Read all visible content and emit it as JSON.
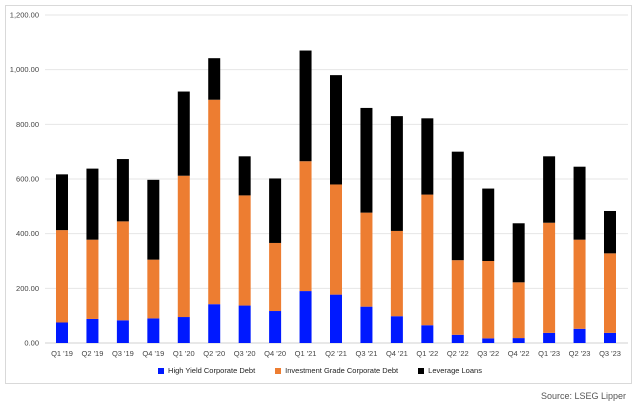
{
  "chart_data": {
    "type": "bar",
    "stacked": true,
    "title": "",
    "xlabel": "",
    "ylabel": "",
    "ylim": [
      0,
      1200
    ],
    "yticks": [
      0,
      200,
      400,
      600,
      800,
      1000,
      1200
    ],
    "ytick_labels": [
      "0.00",
      "200.00",
      "400.00",
      "600.00",
      "800.00",
      "1,000.00",
      "1,200.00"
    ],
    "grid": true,
    "legend_placement": "bottom",
    "categories": [
      "Q1 '19",
      "Q2 '19",
      "Q3 '19",
      "Q4 '19",
      "Q1 '20",
      "Q2 '20",
      "Q3 '20",
      "Q4 '20",
      "Q1 '21",
      "Q2 '21",
      "Q3 '21",
      "Q4 '21",
      "Q1 '22",
      "Q2 '22",
      "Q3 '22",
      "Q4 '22",
      "Q1 '23",
      "Q2 '23",
      "Q3 '23"
    ],
    "series": [
      {
        "name": "High Yield Corporate Debt",
        "color": "#0019ff",
        "values": [
          75,
          88,
          83,
          90,
          95,
          142,
          137,
          117,
          190,
          177,
          133,
          98,
          65,
          30,
          17,
          18,
          37,
          52,
          37
        ]
      },
      {
        "name": "Investment Grade Corporate Debt",
        "color": "#ed7d31",
        "values": [
          338,
          290,
          362,
          215,
          517,
          748,
          403,
          249,
          475,
          403,
          344,
          312,
          478,
          273,
          283,
          204,
          403,
          326,
          291
        ]
      },
      {
        "name": "Leverage Loans",
        "color": "#000000",
        "values": [
          204,
          260,
          228,
          292,
          308,
          152,
          143,
          236,
          405,
          400,
          383,
          420,
          279,
          397,
          265,
          216,
          243,
          267,
          155
        ]
      }
    ]
  },
  "source": "Source: LSEG Lipper"
}
